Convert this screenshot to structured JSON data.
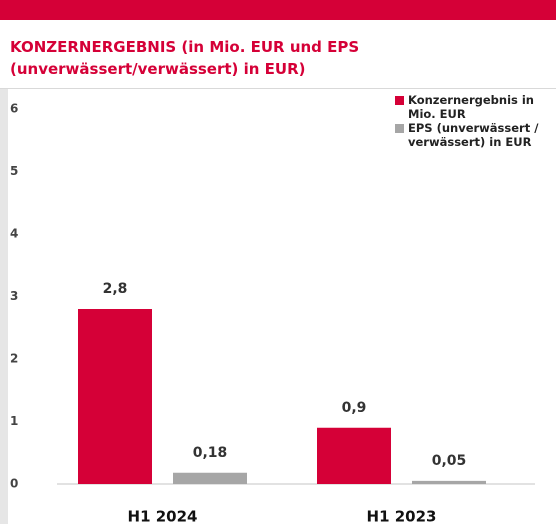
{
  "chart_data": {
    "type": "bar",
    "title": "KONZERNERGEBNIS (in Mio. EUR und EPS (unverwässert/verwässert) in EUR)",
    "categories": [
      "H1 2024",
      "H1 2023"
    ],
    "series": [
      {
        "name": "Konzernergebnis in Mio. EUR",
        "color": "#d50037",
        "values": [
          2.8,
          0.9
        ],
        "value_labels": [
          "2,8",
          "0,9"
        ]
      },
      {
        "name": "EPS (unverwässert / verwässert) in EUR",
        "color": "#a6a6a6",
        "values": [
          0.18,
          0.05
        ],
        "value_labels": [
          "0,18",
          "0,05"
        ]
      }
    ],
    "ylim": [
      0,
      6
    ],
    "yticks": [
      0,
      1,
      2,
      3,
      4,
      5,
      6
    ],
    "grid": false,
    "legend": "top-right"
  }
}
